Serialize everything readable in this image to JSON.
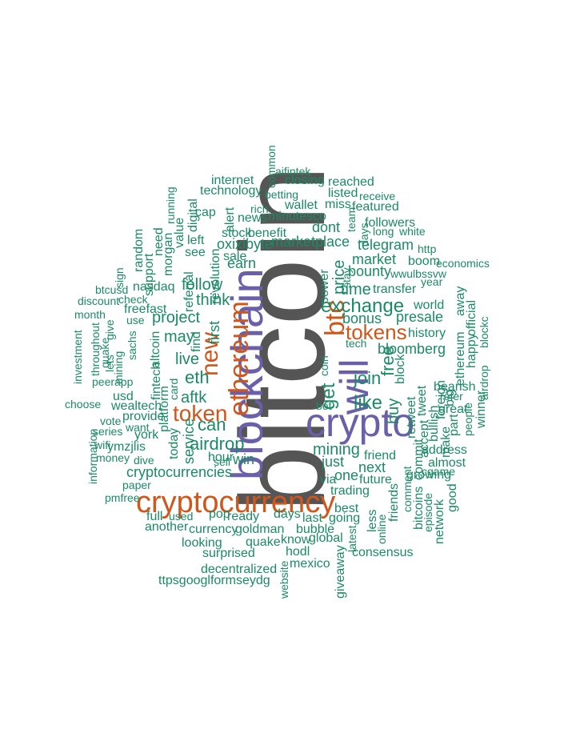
{
  "colors": {
    "dark": "#555555",
    "purple": "#6a5fa8",
    "orange": "#d0561b",
    "green": "#1b8a66"
  },
  "words": [
    {
      "text": "bitcoin",
      "color": "dark",
      "vertical": true
    },
    {
      "text": "blockchain",
      "color": "purple",
      "vertical": true
    },
    {
      "text": "crypto",
      "color": "purple",
      "vertical": false
    },
    {
      "text": "cryptocurrency",
      "color": "orange",
      "vertical": false
    },
    {
      "text": "will",
      "color": "purple",
      "vertical": true
    },
    {
      "text": "ethereum",
      "color": "orange",
      "vertical": true
    },
    {
      "text": "btc",
      "color": "orange",
      "vertical": true
    },
    {
      "text": "tokens",
      "color": "orange",
      "vertical": false
    },
    {
      "text": "new",
      "color": "orange",
      "vertical": true
    },
    {
      "text": "token",
      "color": "orange",
      "vertical": false
    },
    {
      "text": "exchange",
      "color": "green",
      "vertical": false
    },
    {
      "text": "cryptocurrencies",
      "color": "green",
      "vertical": false
    },
    {
      "text": "airdrop",
      "color": "green",
      "vertical": false
    },
    {
      "text": "mining",
      "color": "green",
      "vertical": false
    },
    {
      "text": "marketplace",
      "color": "green",
      "vertical": false
    },
    {
      "text": "get",
      "color": "green",
      "vertical": true
    },
    {
      "text": "price",
      "color": "green",
      "vertical": true
    },
    {
      "text": "like",
      "color": "green",
      "vertical": false
    },
    {
      "text": "join",
      "color": "green",
      "vertical": false
    },
    {
      "text": "free",
      "color": "green",
      "vertical": true
    },
    {
      "text": "time",
      "color": "green",
      "vertical": false
    },
    {
      "text": "market",
      "color": "green",
      "vertical": false
    },
    {
      "text": "bounty",
      "color": "green",
      "vertical": false
    },
    {
      "text": "bonus",
      "color": "green",
      "vertical": false
    },
    {
      "text": "presale",
      "color": "green",
      "vertical": false
    },
    {
      "text": "bloomberg",
      "color": "green",
      "vertical": false
    },
    {
      "text": "buy",
      "color": "green",
      "vertical": true
    },
    {
      "text": "eth",
      "color": "green",
      "vertical": false
    },
    {
      "text": "aftk",
      "color": "green",
      "vertical": false
    },
    {
      "text": "can",
      "color": "green",
      "vertical": false
    },
    {
      "text": "live",
      "color": "green",
      "vertical": false
    },
    {
      "text": "may",
      "color": "green",
      "vertical": false
    },
    {
      "text": "project",
      "color": "green",
      "vertical": false
    },
    {
      "text": "think",
      "color": "green",
      "vertical": false
    },
    {
      "text": "follow",
      "color": "green",
      "vertical": false
    },
    {
      "text": "first",
      "color": "green",
      "vertical": true
    },
    {
      "text": "nasdaq",
      "color": "green",
      "vertical": false
    },
    {
      "text": "earn",
      "color": "green",
      "vertical": false
    },
    {
      "text": "oxixibyte",
      "color": "green",
      "vertical": false
    },
    {
      "text": "benefit",
      "color": "green",
      "vertical": false
    },
    {
      "text": "dont",
      "color": "green",
      "vertical": false
    },
    {
      "text": "telegram",
      "color": "green",
      "vertical": false
    },
    {
      "text": "transfer",
      "color": "green",
      "vertical": false
    },
    {
      "text": "world",
      "color": "green",
      "vertical": false
    },
    {
      "text": "history",
      "color": "green",
      "vertical": false
    },
    {
      "text": "tech",
      "color": "green",
      "vertical": false
    },
    {
      "text": "friend",
      "color": "green",
      "vertical": false
    },
    {
      "text": "tweet",
      "color": "green",
      "vertical": true
    },
    {
      "text": "block",
      "color": "green",
      "vertical": true
    },
    {
      "text": "retweet",
      "color": "green",
      "vertical": true
    },
    {
      "text": "bullish",
      "color": "green",
      "vertical": true
    },
    {
      "text": "foreign",
      "color": "green",
      "vertical": true
    },
    {
      "text": "accept",
      "color": "green",
      "vertical": true
    },
    {
      "text": "commit",
      "color": "green",
      "vertical": true
    },
    {
      "text": "make",
      "color": "green",
      "vertical": true
    },
    {
      "text": "part",
      "color": "green",
      "vertical": true
    },
    {
      "text": "big",
      "color": "green",
      "vertical": true
    },
    {
      "text": "ethereum",
      "color": "green",
      "vertical": true
    },
    {
      "text": "happy",
      "color": "green",
      "vertical": true
    },
    {
      "text": "official",
      "color": "green",
      "vertical": true
    },
    {
      "text": "blockc",
      "color": "green",
      "vertical": true
    },
    {
      "text": "airdrop",
      "color": "green",
      "vertical": true
    },
    {
      "text": "away",
      "color": "green",
      "vertical": true
    },
    {
      "text": "bearish",
      "color": "green",
      "vertical": false
    },
    {
      "text": "refer",
      "color": "green",
      "vertical": false
    },
    {
      "text": "great",
      "color": "green",
      "vertical": false
    },
    {
      "text": "people",
      "color": "green",
      "vertical": true
    },
    {
      "text": "winner",
      "color": "green",
      "vertical": true
    },
    {
      "text": "address",
      "color": "green",
      "vertical": false
    },
    {
      "text": "almost",
      "color": "green",
      "vertical": false
    },
    {
      "text": "cgame",
      "color": "green",
      "vertical": false
    },
    {
      "text": "growing",
      "color": "green",
      "vertical": false
    },
    {
      "text": "good",
      "color": "green",
      "vertical": true
    },
    {
      "text": "network",
      "color": "green",
      "vertical": true
    },
    {
      "text": "episode",
      "color": "green",
      "vertical": true
    },
    {
      "text": "bitcoins",
      "color": "green",
      "vertical": true
    },
    {
      "text": "comment",
      "color": "green",
      "vertical": true
    },
    {
      "text": "friends",
      "color": "green",
      "vertical": true
    },
    {
      "text": "online",
      "color": "green",
      "vertical": true
    },
    {
      "text": "less",
      "color": "green",
      "vertical": true
    },
    {
      "text": "future",
      "color": "green",
      "vertical": false
    },
    {
      "text": "next",
      "color": "green",
      "vertical": false
    },
    {
      "text": "one",
      "color": "green",
      "vertical": false
    },
    {
      "text": "just",
      "color": "green",
      "vertical": false
    },
    {
      "text": "trading",
      "color": "green",
      "vertical": false
    },
    {
      "text": "via",
      "color": "green",
      "vertical": false
    },
    {
      "text": "best",
      "color": "green",
      "vertical": false
    },
    {
      "text": "going",
      "color": "green",
      "vertical": false
    },
    {
      "text": "last",
      "color": "green",
      "vertical": false
    },
    {
      "text": "days",
      "color": "green",
      "vertical": false
    },
    {
      "text": "ready",
      "color": "green",
      "vertical": false
    },
    {
      "text": "pop",
      "color": "green",
      "vertical": false
    },
    {
      "text": "used",
      "color": "green",
      "vertical": false
    },
    {
      "text": "full",
      "color": "green",
      "vertical": false
    },
    {
      "text": "another",
      "color": "green",
      "vertical": false
    },
    {
      "text": "currency",
      "color": "green",
      "vertical": false
    },
    {
      "text": "goldman",
      "color": "green",
      "vertical": false
    },
    {
      "text": "bubble",
      "color": "green",
      "vertical": false
    },
    {
      "text": "know",
      "color": "green",
      "vertical": false
    },
    {
      "text": "global",
      "color": "green",
      "vertical": false
    },
    {
      "text": "quake",
      "color": "green",
      "vertical": false
    },
    {
      "text": "looking",
      "color": "green",
      "vertical": false
    },
    {
      "text": "surprised",
      "color": "green",
      "vertical": false
    },
    {
      "text": "hodl",
      "color": "green",
      "vertical": false
    },
    {
      "text": "consensus",
      "color": "green",
      "vertical": false
    },
    {
      "text": "decentralized",
      "color": "green",
      "vertical": false
    },
    {
      "text": "mexico",
      "color": "green",
      "vertical": false
    },
    {
      "text": "ttpsgooglformseydg",
      "color": "green",
      "vertical": false
    },
    {
      "text": "website",
      "color": "green",
      "vertical": true
    },
    {
      "text": "giveaway",
      "color": "green",
      "vertical": true
    },
    {
      "text": "latest",
      "color": "green",
      "vertical": true
    },
    {
      "text": "sell",
      "color": "green",
      "vertical": false
    },
    {
      "text": "win",
      "color": "green",
      "vertical": false
    },
    {
      "text": "hour",
      "color": "green",
      "vertical": false
    },
    {
      "text": "service",
      "color": "green",
      "vertical": true
    },
    {
      "text": "today",
      "color": "green",
      "vertical": true
    },
    {
      "text": "platform",
      "color": "green",
      "vertical": true
    },
    {
      "text": "fintech",
      "color": "green",
      "vertical": true
    },
    {
      "text": "card",
      "color": "green",
      "vertical": true
    },
    {
      "text": "altcoin",
      "color": "green",
      "vertical": true
    },
    {
      "text": "find",
      "color": "green",
      "vertical": true
    },
    {
      "text": "referral",
      "color": "green",
      "vertical": true
    },
    {
      "text": "revolution",
      "color": "green",
      "vertical": true
    },
    {
      "text": "alert",
      "color": "green",
      "vertical": true
    },
    {
      "text": "digital",
      "color": "green",
      "vertical": true
    },
    {
      "text": "value",
      "color": "green",
      "vertical": true
    },
    {
      "text": "morgan",
      "color": "green",
      "vertical": true
    },
    {
      "text": "running",
      "color": "green",
      "vertical": true
    },
    {
      "text": "need",
      "color": "green",
      "vertical": true
    },
    {
      "text": "support",
      "color": "green",
      "vertical": true
    },
    {
      "text": "random",
      "color": "green",
      "vertical": true
    },
    {
      "text": "sign",
      "color": "green",
      "vertical": true
    },
    {
      "text": "left",
      "color": "green",
      "vertical": false
    },
    {
      "text": "see",
      "color": "green",
      "vertical": false
    },
    {
      "text": "sale",
      "color": "green",
      "vertical": false
    },
    {
      "text": "stock",
      "color": "green",
      "vertical": false
    },
    {
      "text": "news",
      "color": "green",
      "vertical": false
    },
    {
      "text": "rich",
      "color": "green",
      "vertical": false
    },
    {
      "text": "cap",
      "color": "green",
      "vertical": false
    },
    {
      "text": "technology",
      "color": "green",
      "vertical": false
    },
    {
      "text": "internet",
      "color": "green",
      "vertical": false
    },
    {
      "text": "betting",
      "color": "green",
      "vertical": false
    },
    {
      "text": "aifintek",
      "color": "green",
      "vertical": false
    },
    {
      "text": "closing",
      "color": "green",
      "vertical": false
    },
    {
      "text": "reached",
      "color": "green",
      "vertical": false
    },
    {
      "text": "listed",
      "color": "green",
      "vertical": false
    },
    {
      "text": "wallet",
      "color": "green",
      "vertical": false
    },
    {
      "text": "miss",
      "color": "green",
      "vertical": false
    },
    {
      "text": "receive",
      "color": "green",
      "vertical": false
    },
    {
      "text": "featured",
      "color": "green",
      "vertical": false
    },
    {
      "text": "minutesco",
      "color": "green",
      "vertical": false
    },
    {
      "text": "common",
      "color": "green",
      "vertical": true
    },
    {
      "text": "followers",
      "color": "green",
      "vertical": false
    },
    {
      "text": "long",
      "color": "green",
      "vertical": false
    },
    {
      "text": "white",
      "color": "green",
      "vertical": false
    },
    {
      "text": "http",
      "color": "green",
      "vertical": false
    },
    {
      "text": "boom",
      "color": "green",
      "vertical": false
    },
    {
      "text": "economics",
      "color": "green",
      "vertical": false
    },
    {
      "text": "wwulbssvw",
      "color": "green",
      "vertical": false
    },
    {
      "text": "year",
      "color": "green",
      "vertical": false
    },
    {
      "text": "stay",
      "color": "green",
      "vertical": true
    },
    {
      "text": "team",
      "color": "green",
      "vertical": true
    },
    {
      "text": "days",
      "color": "green",
      "vertical": true
    },
    {
      "text": "coin",
      "color": "green",
      "vertical": true
    },
    {
      "text": "power",
      "color": "green",
      "vertical": true
    },
    {
      "text": "bet",
      "color": "green",
      "vertical": false
    },
    {
      "text": "btcusd",
      "color": "green",
      "vertical": false
    },
    {
      "text": "discount",
      "color": "green",
      "vertical": false
    },
    {
      "text": "check",
      "color": "green",
      "vertical": false
    },
    {
      "text": "freefast",
      "color": "green",
      "vertical": false
    },
    {
      "text": "use",
      "color": "green",
      "vertical": false
    },
    {
      "text": "month",
      "color": "green",
      "vertical": false
    },
    {
      "text": "quake",
      "color": "green",
      "vertical": true
    },
    {
      "text": "mining",
      "color": "green",
      "vertical": true
    },
    {
      "text": "sachs",
      "color": "green",
      "vertical": true
    },
    {
      "text": "give",
      "color": "green",
      "vertical": true
    },
    {
      "text": "lets",
      "color": "green",
      "vertical": true
    },
    {
      "text": "throughout",
      "color": "green",
      "vertical": true
    },
    {
      "text": "investment",
      "color": "green",
      "vertical": true
    },
    {
      "text": "peerapp",
      "color": "green",
      "vertical": false
    },
    {
      "text": "usd",
      "color": "green",
      "vertical": false
    },
    {
      "text": "wealtech",
      "color": "green",
      "vertical": false
    },
    {
      "text": "choose",
      "color": "green",
      "vertical": false
    },
    {
      "text": "provide",
      "color": "green",
      "vertical": false
    },
    {
      "text": "want",
      "color": "green",
      "vertical": false
    },
    {
      "text": "vote",
      "color": "green",
      "vertical": false
    },
    {
      "text": "york",
      "color": "green",
      "vertical": false
    },
    {
      "text": "series",
      "color": "green",
      "vertical": false
    },
    {
      "text": "wifi",
      "color": "green",
      "vertical": false
    },
    {
      "text": "ymzjlis",
      "color": "green",
      "vertical": false
    },
    {
      "text": "money",
      "color": "green",
      "vertical": false
    },
    {
      "text": "dive",
      "color": "green",
      "vertical": false
    },
    {
      "text": "information",
      "color": "green",
      "vertical": true
    },
    {
      "text": "paper",
      "color": "green",
      "vertical": false
    },
    {
      "text": "pmfree",
      "color": "green",
      "vertical": false
    }
  ]
}
